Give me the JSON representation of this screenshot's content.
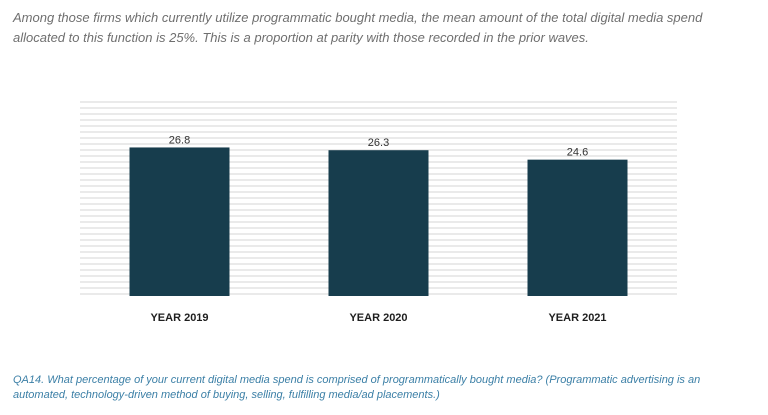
{
  "intro": {
    "line1": "Among those firms which currently utilize programmatic bought media, the mean amount of the total digital media spend",
    "line2": "allocated to this function is 25%.  This is a proportion at parity with those recorded in the prior waves."
  },
  "chart_data": {
    "type": "bar",
    "categories": [
      "YEAR 2019",
      "YEAR 2020",
      "YEAR 2021"
    ],
    "values": [
      26.8,
      26.3,
      24.6
    ],
    "data_labels": [
      "26.8",
      "26.3",
      "24.6"
    ],
    "ylim": [
      0,
      35
    ],
    "grid": true,
    "legend": "none",
    "bar_color": "#173d4d",
    "grid_color": "#d4d4d4"
  },
  "footnote": {
    "line1": "QA14. What percentage of your current digital media spend is comprised of programmatically bought media?  (Programmatic advertising is an",
    "line2": "automated, technology-driven method of buying, selling, fulfilling media/ad placements.)"
  }
}
